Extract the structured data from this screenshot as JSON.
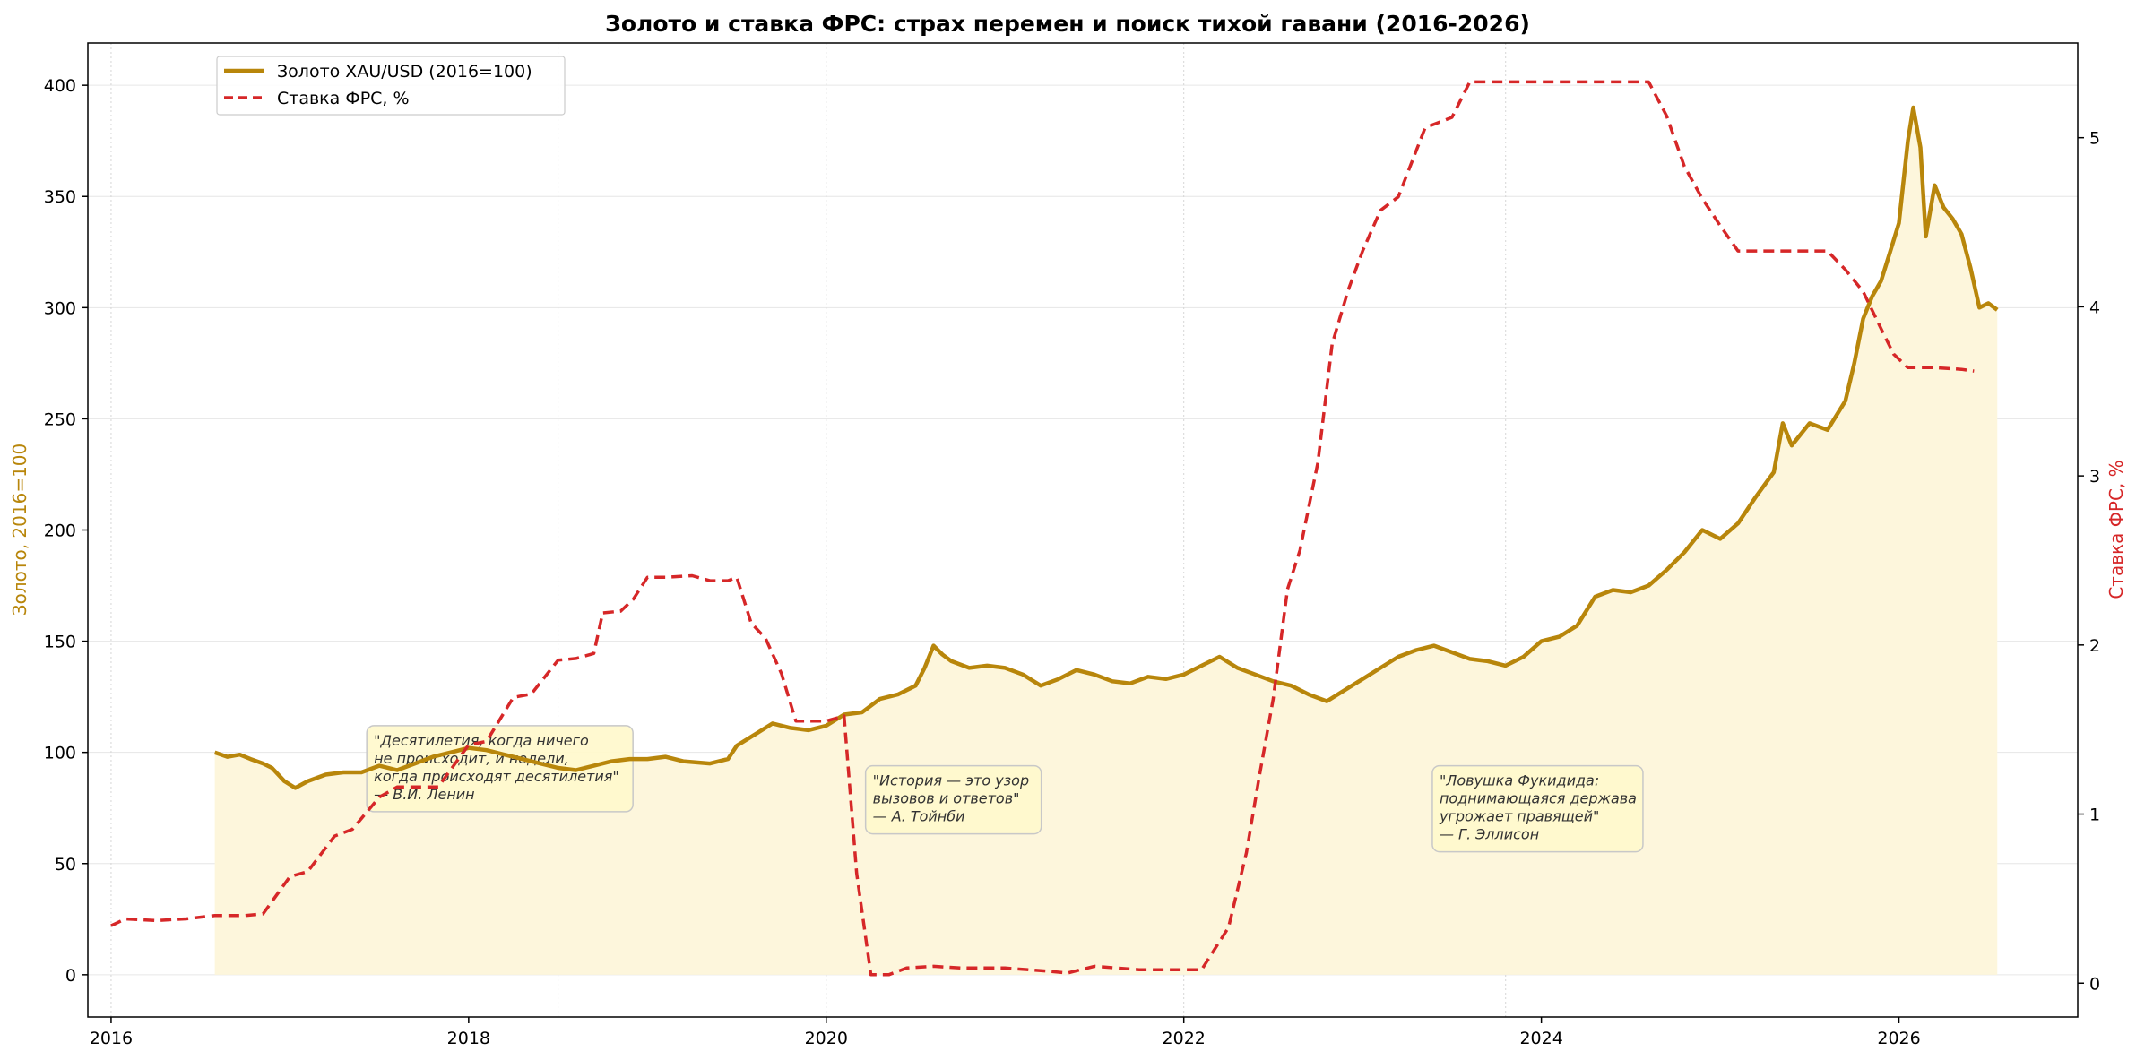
{
  "chart_data": {
    "type": "line",
    "title": "Золото и ставка ФРС: страх перемен и поиск тихой гавани (2016-2026)",
    "xlim": [
      2015.87,
      2027.0
    ],
    "x_ticks": [
      "2016",
      "2018",
      "2020",
      "2022",
      "2024",
      "2026"
    ],
    "x_tick_values": [
      2016,
      2018,
      2020,
      2022,
      2024,
      2026
    ],
    "grid": true,
    "legend_position": "upper-left",
    "y_left": {
      "label": "Золото, 2016=100",
      "ylim": [
        -19,
        419
      ],
      "ticks": [
        "0",
        "50",
        "100",
        "150",
        "200",
        "250",
        "300",
        "350",
        "400"
      ],
      "tick_values": [
        0,
        50,
        100,
        150,
        200,
        250,
        300,
        350,
        400
      ]
    },
    "y_right": {
      "label": "Ставка ФРС, %",
      "ylim": [
        -0.2,
        5.56
      ],
      "ticks": [
        "0",
        "1",
        "2",
        "3",
        "4",
        "5"
      ],
      "tick_values": [
        0,
        1,
        2,
        3,
        4,
        5
      ]
    },
    "series": [
      {
        "name": "Золото XAU/USD (2016=100)",
        "axis": "left",
        "color": "#b8860b",
        "style": "solid",
        "fill": "#fdf6dc",
        "points": [
          [
            2016.58,
            100
          ],
          [
            2016.65,
            98
          ],
          [
            2016.72,
            99
          ],
          [
            2016.78,
            97
          ],
          [
            2016.85,
            95
          ],
          [
            2016.9,
            93
          ],
          [
            2016.97,
            87
          ],
          [
            2017.03,
            84
          ],
          [
            2017.1,
            87
          ],
          [
            2017.2,
            90
          ],
          [
            2017.3,
            91
          ],
          [
            2017.4,
            91
          ],
          [
            2017.5,
            94
          ],
          [
            2017.6,
            92
          ],
          [
            2017.7,
            95
          ],
          [
            2017.8,
            98
          ],
          [
            2017.9,
            100
          ],
          [
            2018.0,
            102
          ],
          [
            2018.1,
            101
          ],
          [
            2018.2,
            99
          ],
          [
            2018.3,
            97
          ],
          [
            2018.4,
            95
          ],
          [
            2018.5,
            93
          ],
          [
            2018.6,
            92
          ],
          [
            2018.7,
            94
          ],
          [
            2018.8,
            96
          ],
          [
            2018.9,
            97
          ],
          [
            2019.0,
            97
          ],
          [
            2019.1,
            98
          ],
          [
            2019.2,
            96
          ],
          [
            2019.35,
            95
          ],
          [
            2019.45,
            97
          ],
          [
            2019.5,
            103
          ],
          [
            2019.6,
            108
          ],
          [
            2019.7,
            113
          ],
          [
            2019.8,
            111
          ],
          [
            2019.9,
            110
          ],
          [
            2020.0,
            112
          ],
          [
            2020.1,
            117
          ],
          [
            2020.2,
            118
          ],
          [
            2020.3,
            124
          ],
          [
            2020.4,
            126
          ],
          [
            2020.5,
            130
          ],
          [
            2020.55,
            138
          ],
          [
            2020.6,
            148
          ],
          [
            2020.65,
            144
          ],
          [
            2020.7,
            141
          ],
          [
            2020.8,
            138
          ],
          [
            2020.9,
            139
          ],
          [
            2021.0,
            138
          ],
          [
            2021.1,
            135
          ],
          [
            2021.2,
            130
          ],
          [
            2021.3,
            133
          ],
          [
            2021.4,
            137
          ],
          [
            2021.5,
            135
          ],
          [
            2021.6,
            132
          ],
          [
            2021.7,
            131
          ],
          [
            2021.8,
            134
          ],
          [
            2021.9,
            133
          ],
          [
            2022.0,
            135
          ],
          [
            2022.1,
            139
          ],
          [
            2022.2,
            143
          ],
          [
            2022.3,
            138
          ],
          [
            2022.4,
            135
          ],
          [
            2022.5,
            132
          ],
          [
            2022.6,
            130
          ],
          [
            2022.7,
            126
          ],
          [
            2022.8,
            123
          ],
          [
            2022.9,
            128
          ],
          [
            2023.0,
            133
          ],
          [
            2023.1,
            138
          ],
          [
            2023.2,
            143
          ],
          [
            2023.3,
            146
          ],
          [
            2023.4,
            148
          ],
          [
            2023.5,
            145
          ],
          [
            2023.6,
            142
          ],
          [
            2023.7,
            141
          ],
          [
            2023.8,
            139
          ],
          [
            2023.9,
            143
          ],
          [
            2024.0,
            150
          ],
          [
            2024.1,
            152
          ],
          [
            2024.2,
            157
          ],
          [
            2024.3,
            170
          ],
          [
            2024.4,
            173
          ],
          [
            2024.5,
            172
          ],
          [
            2024.6,
            175
          ],
          [
            2024.7,
            182
          ],
          [
            2024.8,
            190
          ],
          [
            2024.9,
            200
          ],
          [
            2025.0,
            196
          ],
          [
            2025.1,
            203
          ],
          [
            2025.2,
            215
          ],
          [
            2025.3,
            226
          ],
          [
            2025.35,
            248
          ],
          [
            2025.4,
            238
          ],
          [
            2025.5,
            248
          ],
          [
            2025.6,
            245
          ],
          [
            2025.7,
            258
          ],
          [
            2025.75,
            275
          ],
          [
            2025.8,
            295
          ],
          [
            2025.85,
            305
          ],
          [
            2025.9,
            312
          ],
          [
            2025.95,
            325
          ],
          [
            2026.0,
            338
          ],
          [
            2026.05,
            375
          ],
          [
            2026.08,
            390
          ],
          [
            2026.12,
            372
          ],
          [
            2026.15,
            332
          ],
          [
            2026.2,
            355
          ],
          [
            2026.25,
            345
          ],
          [
            2026.3,
            340
          ],
          [
            2026.35,
            333
          ],
          [
            2026.4,
            318
          ],
          [
            2026.45,
            300
          ],
          [
            2026.5,
            302
          ],
          [
            2026.55,
            299
          ]
        ]
      },
      {
        "name": "Ставка ФРС, %",
        "axis": "right",
        "color": "#d62728",
        "style": "dashed",
        "points": [
          [
            2016.0,
            0.34
          ],
          [
            2016.08,
            0.38
          ],
          [
            2016.25,
            0.37
          ],
          [
            2016.42,
            0.38
          ],
          [
            2016.58,
            0.4
          ],
          [
            2016.75,
            0.4
          ],
          [
            2016.85,
            0.41
          ],
          [
            2017.0,
            0.63
          ],
          [
            2017.1,
            0.66
          ],
          [
            2017.25,
            0.87
          ],
          [
            2017.35,
            0.91
          ],
          [
            2017.5,
            1.1
          ],
          [
            2017.6,
            1.16
          ],
          [
            2017.75,
            1.16
          ],
          [
            2017.83,
            1.16
          ],
          [
            2018.0,
            1.41
          ],
          [
            2018.1,
            1.43
          ],
          [
            2018.25,
            1.69
          ],
          [
            2018.35,
            1.71
          ],
          [
            2018.5,
            1.91
          ],
          [
            2018.6,
            1.92
          ],
          [
            2018.7,
            1.95
          ],
          [
            2018.75,
            2.19
          ],
          [
            2018.85,
            2.2
          ],
          [
            2018.92,
            2.27
          ],
          [
            2019.0,
            2.4
          ],
          [
            2019.1,
            2.4
          ],
          [
            2019.25,
            2.41
          ],
          [
            2019.35,
            2.38
          ],
          [
            2019.45,
            2.38
          ],
          [
            2019.5,
            2.4
          ],
          [
            2019.58,
            2.13
          ],
          [
            2019.66,
            2.04
          ],
          [
            2019.75,
            1.83
          ],
          [
            2019.83,
            1.55
          ],
          [
            2019.92,
            1.55
          ],
          [
            2020.0,
            1.55
          ],
          [
            2020.1,
            1.58
          ],
          [
            2020.17,
            0.65
          ],
          [
            2020.25,
            0.05
          ],
          [
            2020.35,
            0.05
          ],
          [
            2020.45,
            0.09
          ],
          [
            2020.6,
            0.1
          ],
          [
            2020.75,
            0.09
          ],
          [
            2021.0,
            0.09
          ],
          [
            2021.25,
            0.07
          ],
          [
            2021.35,
            0.06
          ],
          [
            2021.5,
            0.1
          ],
          [
            2021.75,
            0.08
          ],
          [
            2022.0,
            0.08
          ],
          [
            2022.1,
            0.08
          ],
          [
            2022.25,
            0.33
          ],
          [
            2022.35,
            0.77
          ],
          [
            2022.42,
            1.21
          ],
          [
            2022.5,
            1.68
          ],
          [
            2022.58,
            2.33
          ],
          [
            2022.65,
            2.56
          ],
          [
            2022.75,
            3.08
          ],
          [
            2022.83,
            3.78
          ],
          [
            2022.92,
            4.1
          ],
          [
            2023.0,
            4.33
          ],
          [
            2023.1,
            4.57
          ],
          [
            2023.2,
            4.65
          ],
          [
            2023.35,
            5.06
          ],
          [
            2023.5,
            5.12
          ],
          [
            2023.6,
            5.33
          ],
          [
            2023.75,
            5.33
          ],
          [
            2024.0,
            5.33
          ],
          [
            2024.25,
            5.33
          ],
          [
            2024.5,
            5.33
          ],
          [
            2024.6,
            5.33
          ],
          [
            2024.7,
            5.13
          ],
          [
            2024.8,
            4.83
          ],
          [
            2024.9,
            4.64
          ],
          [
            2025.0,
            4.48
          ],
          [
            2025.1,
            4.33
          ],
          [
            2025.3,
            4.33
          ],
          [
            2025.5,
            4.33
          ],
          [
            2025.6,
            4.33
          ],
          [
            2025.7,
            4.22
          ],
          [
            2025.8,
            4.09
          ],
          [
            2025.9,
            3.87
          ],
          [
            2025.97,
            3.72
          ],
          [
            2026.05,
            3.64
          ],
          [
            2026.2,
            3.64
          ],
          [
            2026.35,
            3.63
          ],
          [
            2026.42,
            3.62
          ]
        ]
      }
    ],
    "annotations": [
      {
        "lines": [
          "\"Десятилетия, когда ничего",
          "не происходит, и недели,",
          "когда происходят десятилетия\"",
          "— В.И. Ленин"
        ]
      },
      {
        "lines": [
          "\"История — это узор",
          "вызовов и ответов\"",
          "— А. Тойнби"
        ]
      },
      {
        "lines": [
          "\"Ловушка Фукидида:",
          "поднимающаяся держава",
          "угрожает правящей\"",
          "— Г. Эллисон"
        ]
      }
    ],
    "annotation_style": {
      "fill": "#fff8cc",
      "stroke": "#c8c8c8"
    },
    "grid_color": "#e6e6e6",
    "year_vlines": [
      2016,
      2018.5,
      2020,
      2022,
      2023.8
    ],
    "left_axis_color": "#b8860b",
    "right_axis_color": "#d62728"
  }
}
